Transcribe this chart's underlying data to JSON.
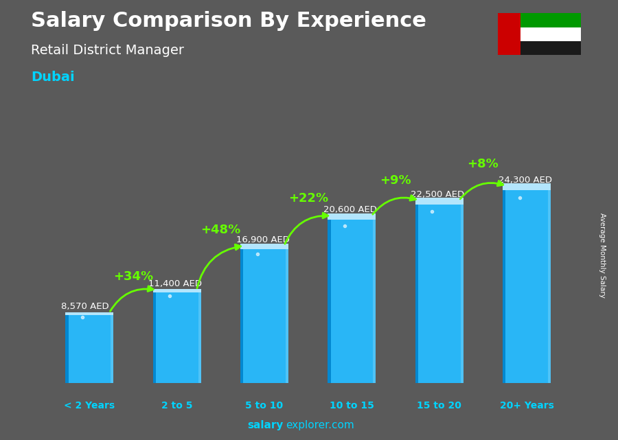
{
  "title_line1": "Salary Comparison By Experience",
  "title_line2": "Retail District Manager",
  "city": "Dubai",
  "categories": [
    "< 2 Years",
    "2 to 5",
    "5 to 10",
    "10 to 15",
    "15 to 20",
    "20+ Years"
  ],
  "values": [
    8570,
    11400,
    16900,
    20600,
    22500,
    24300
  ],
  "pct_changes": [
    "+34%",
    "+48%",
    "+22%",
    "+9%",
    "+8%"
  ],
  "bar_color_face": "#29b6f6",
  "bar_color_left": "#0288d1",
  "bar_color_right": "#4fc3f7",
  "bar_color_top": "#b3e5fc",
  "background_color": "#5a5a5a",
  "title_color": "#ffffff",
  "city_color": "#00d4ff",
  "value_label_color": "#ffffff",
  "pct_color": "#66ff00",
  "xlabel_color": "#00d4ff",
  "watermark_bold": "salary",
  "watermark_rest": "explorer.com",
  "right_label": "Average Monthly Salary",
  "ylim": [
    0,
    30000
  ],
  "bar_width": 0.55,
  "flag_colors": {
    "green": "#009900",
    "white": "#ffffff",
    "black": "#1a1a1a",
    "red": "#cc0000"
  }
}
